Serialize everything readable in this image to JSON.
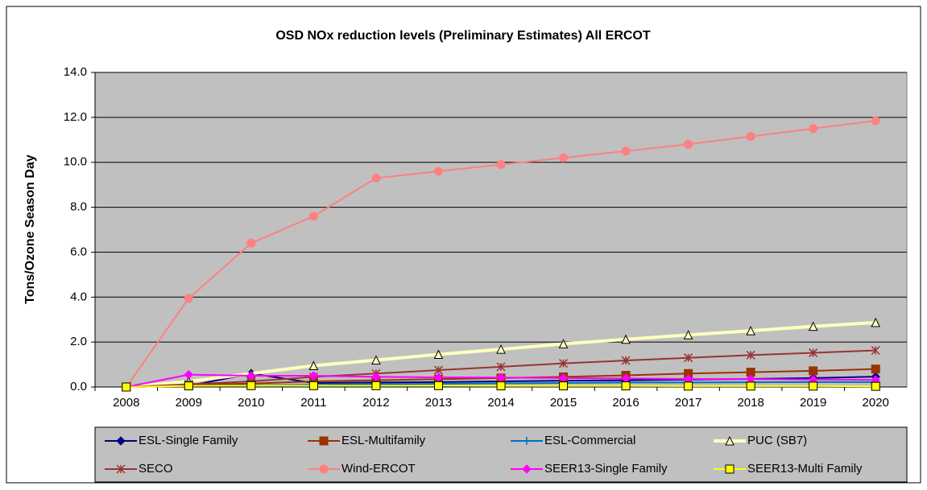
{
  "chart_data": {
    "type": "line",
    "title": "OSD NOx reduction levels   (Preliminary Estimates) All ERCOT",
    "y_label": "Tons/Ozone Season Day",
    "categories": [
      "2008",
      "2009",
      "2010",
      "2011",
      "2012",
      "2013",
      "2014",
      "2015",
      "2016",
      "2017",
      "2018",
      "2019",
      "2020"
    ],
    "ylim": [
      0,
      14
    ],
    "yticks": [
      {
        "value": 0,
        "label": "0.0"
      },
      {
        "value": 2,
        "label": "2.0"
      },
      {
        "value": 4,
        "label": "4.0"
      },
      {
        "value": 6,
        "label": "6.0"
      },
      {
        "value": 8,
        "label": "8.0"
      },
      {
        "value": 10,
        "label": "10.0"
      },
      {
        "value": 12,
        "label": "12.0"
      },
      {
        "value": 14,
        "label": "14.0"
      }
    ],
    "grid": true,
    "legend": "bottom",
    "series": [
      {
        "name": "ESL-Single Family",
        "color": "#000080",
        "marker": "diamond",
        "values": [
          0,
          0.05,
          0.6,
          0.18,
          0.2,
          0.22,
          0.25,
          0.28,
          0.3,
          0.33,
          0.36,
          0.4,
          0.46
        ]
      },
      {
        "name": "ESL-Multifamily",
        "color": "#993300",
        "marker": "square",
        "values": [
          0,
          0.1,
          0.15,
          0.25,
          0.3,
          0.35,
          0.4,
          0.45,
          0.52,
          0.6,
          0.66,
          0.72,
          0.8
        ]
      },
      {
        "name": "ESL-Commercial",
        "color": "#0070c0",
        "marker": "plus",
        "values": [
          0,
          0.05,
          0.08,
          0.1,
          0.12,
          0.14,
          0.16,
          0.18,
          0.2,
          0.2,
          0.21,
          0.22,
          0.22
        ]
      },
      {
        "name": "PUC (SB7)",
        "color": "#ffffc0",
        "marker": "triangle",
        "values": [
          0,
          0.25,
          0.6,
          0.95,
          1.2,
          1.45,
          1.68,
          1.92,
          2.12,
          2.32,
          2.5,
          2.7,
          2.87
        ]
      },
      {
        "name": "SECO",
        "color": "#993333",
        "marker": "star",
        "values": [
          0,
          0.12,
          0.25,
          0.45,
          0.6,
          0.75,
          0.9,
          1.05,
          1.18,
          1.3,
          1.42,
          1.52,
          1.63
        ]
      },
      {
        "name": "Wind-ERCOT",
        "color": "#ff8080",
        "marker": "circle",
        "values": [
          0,
          3.95,
          6.4,
          7.6,
          9.3,
          9.6,
          9.9,
          10.2,
          10.5,
          10.8,
          11.15,
          11.5,
          11.85
        ]
      },
      {
        "name": "SEER13-Single Family",
        "color": "#ff00ff",
        "marker": "diamond",
        "values": [
          0,
          0.55,
          0.5,
          0.5,
          0.45,
          0.43,
          0.42,
          0.4,
          0.38,
          0.36,
          0.35,
          0.33,
          0.32
        ]
      },
      {
        "name": "SEER13-Multi Family",
        "color": "#ffff00",
        "marker": "square",
        "values": [
          0,
          0.05,
          0.06,
          0.06,
          0.06,
          0.06,
          0.05,
          0.05,
          0.05,
          0.04,
          0.04,
          0.04,
          0.03
        ]
      }
    ]
  }
}
